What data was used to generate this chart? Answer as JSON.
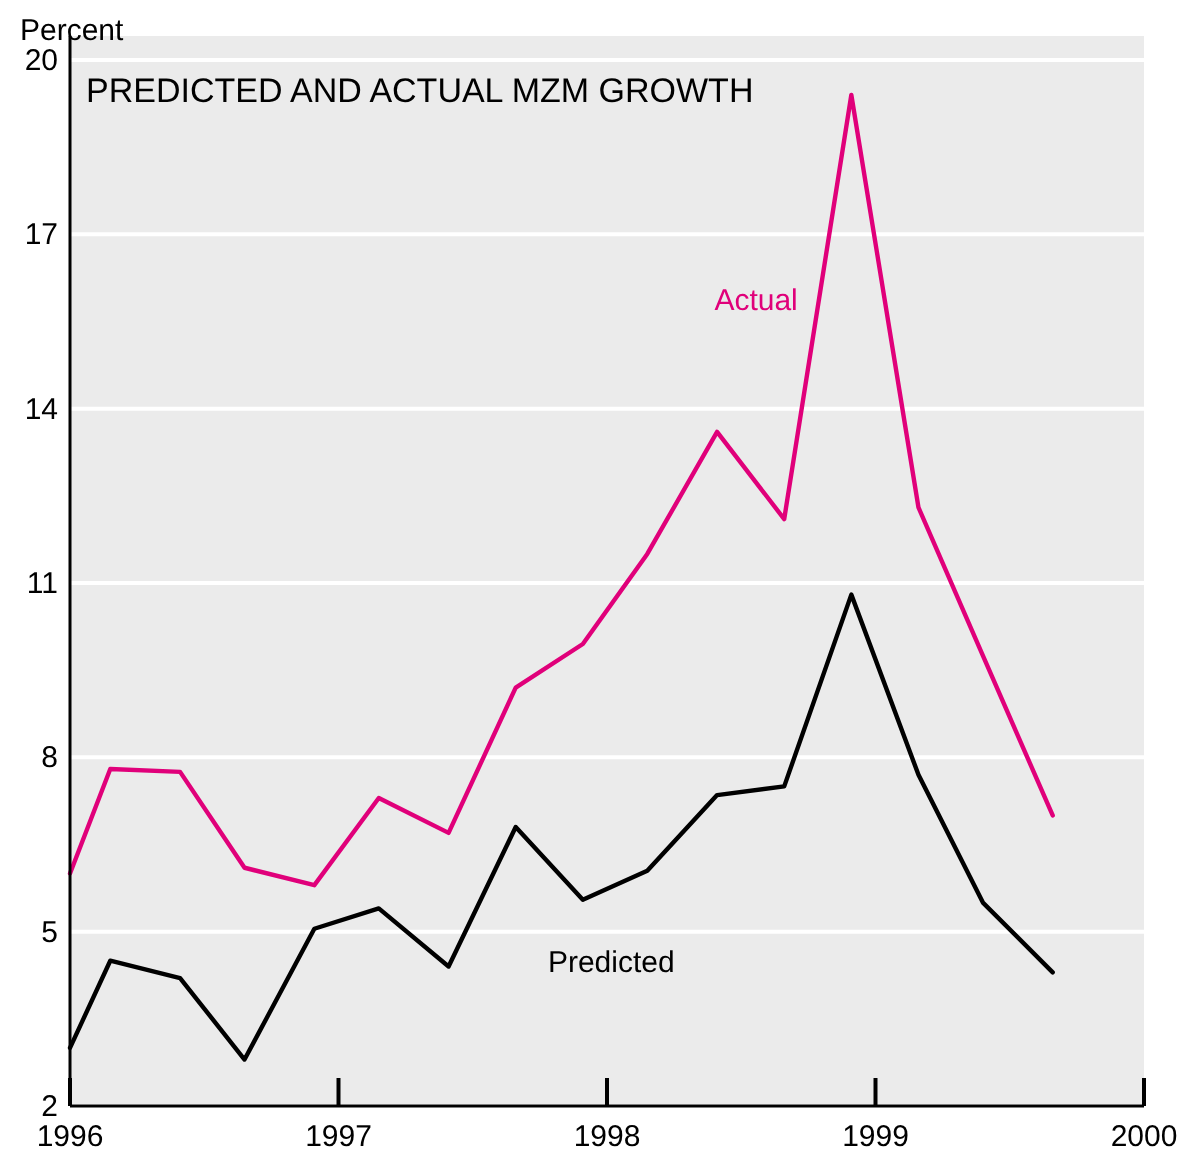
{
  "chart_data": {
    "type": "line",
    "title": "PREDICTED AND ACTUAL MZM GROWTH",
    "ylabel": "Percent",
    "xlim": [
      1996,
      2000
    ],
    "xticks": [
      1996,
      1997,
      1998,
      1999,
      2000
    ],
    "ylim": [
      2,
      20
    ],
    "yticks": [
      2,
      5,
      8,
      11,
      14,
      17,
      20
    ],
    "grid": "y",
    "marker": "none",
    "line_style": "solid",
    "series": [
      {
        "name": "Actual",
        "color": "#e0007a",
        "x": [
          1996,
          1996.15,
          1996.41,
          1996.65,
          1996.91,
          1997.15,
          1997.41,
          1997.66,
          1997.91,
          1998.15,
          1998.41,
          1998.66,
          1998.91,
          1999.16,
          1999.4,
          1999.66
        ],
        "values": [
          6.0,
          7.8,
          7.75,
          6.1,
          5.8,
          7.3,
          6.7,
          9.2,
          9.95,
          11.5,
          13.6,
          12.1,
          19.4,
          12.3,
          9.75,
          7.0
        ]
      },
      {
        "name": "Predicted",
        "color": "#000000",
        "x": [
          1996,
          1996.15,
          1996.41,
          1996.65,
          1996.91,
          1997.15,
          1997.41,
          1997.66,
          1997.91,
          1998.15,
          1998.41,
          1998.66,
          1998.91,
          1999.16,
          1999.4,
          1999.66
        ],
        "values": [
          3.0,
          4.5,
          4.2,
          2.8,
          5.05,
          5.4,
          4.4,
          6.8,
          5.55,
          6.05,
          7.35,
          7.5,
          10.8,
          7.7,
          5.5,
          4.3
        ]
      }
    ]
  }
}
